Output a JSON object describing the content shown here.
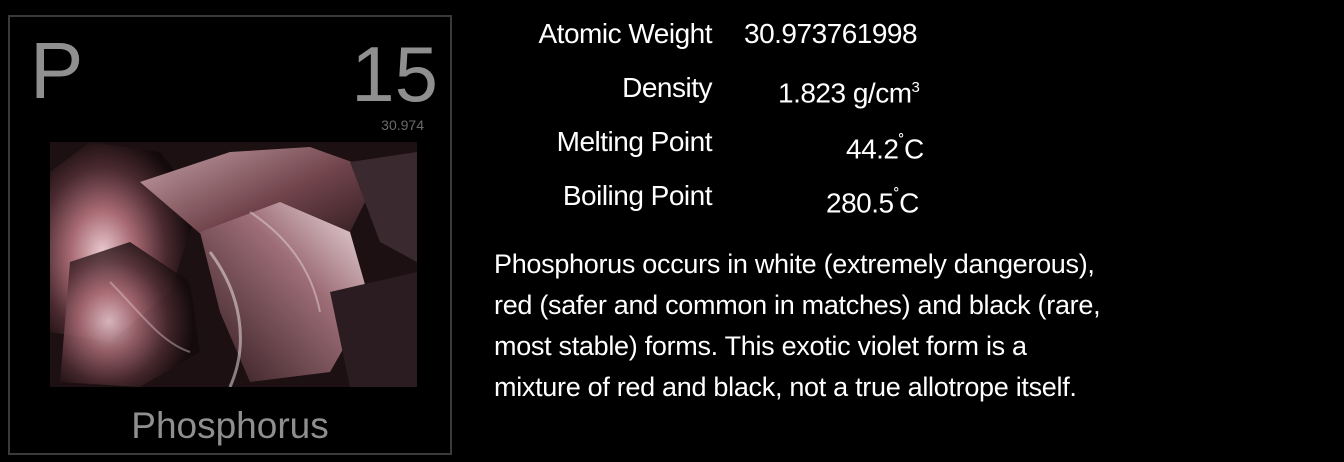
{
  "element": {
    "symbol": "P",
    "atomic_number": "15",
    "atomic_weight_short": "30.974",
    "name": "Phosphorus"
  },
  "properties": [
    {
      "label": "Atomic Weight",
      "value": "30.973761998",
      "unit": "",
      "sup": ""
    },
    {
      "label": "Density",
      "value": "1.823 g/cm",
      "unit": "",
      "sup": "3"
    },
    {
      "label": "Melting Point",
      "value": "44.2",
      "unit": "C",
      "sup": "˚"
    },
    {
      "label": "Boiling Point",
      "value": "280.5",
      "unit": "C",
      "sup": "˚"
    }
  ],
  "description": [
    "Phosphorus occurs in white (extremely dangerous),",
    "red (safer and common in matches) and black (rare,",
    "most stable) forms.  This exotic violet form is a",
    "mixture of red and black, not a true allotrope itself."
  ]
}
